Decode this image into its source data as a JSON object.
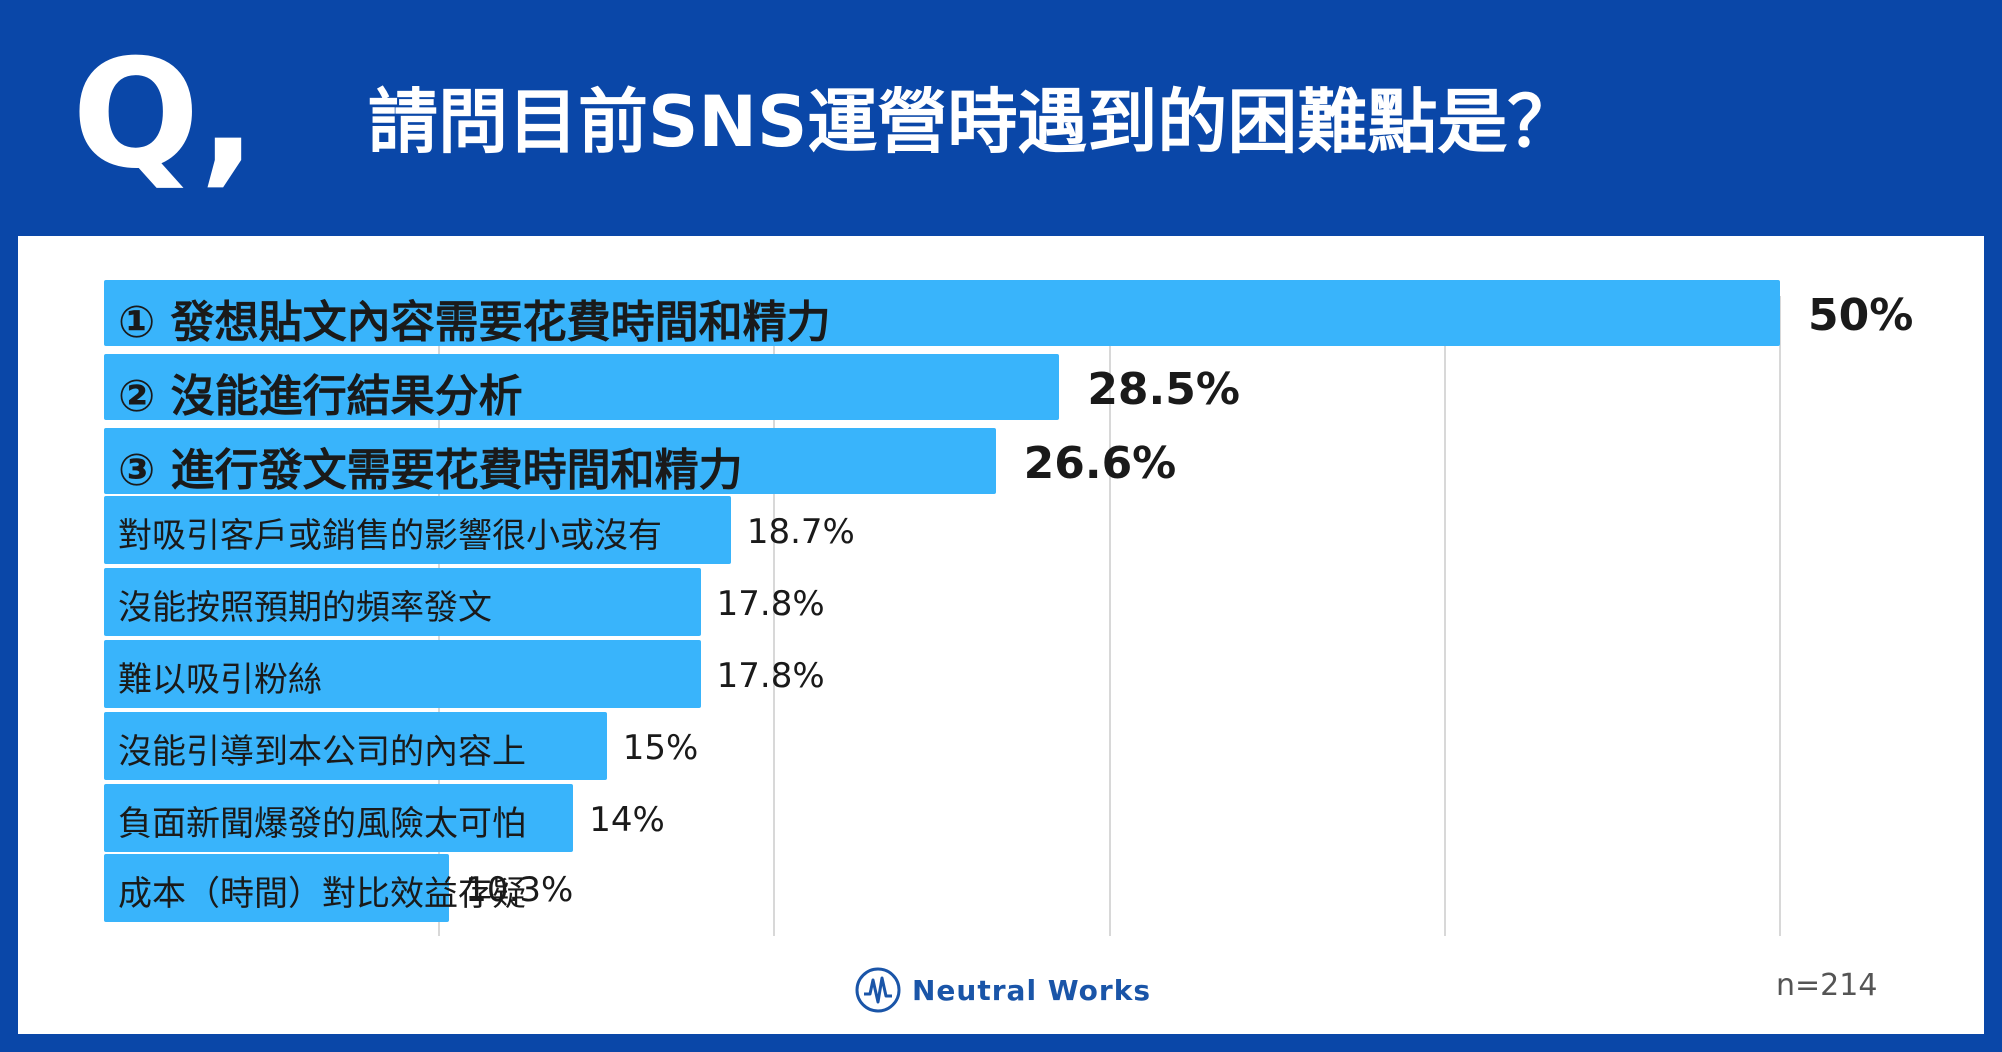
{
  "header": {
    "q_mark": "Q,",
    "question": "請問目前SNS運營時遇到的困難點是？"
  },
  "colors": {
    "background": "#0a47a8",
    "bar": "#39b4fb",
    "panel": "#ffffff"
  },
  "chart_data": {
    "type": "bar",
    "orientation": "horizontal",
    "categories": [
      "① 發想貼文內容需要花費時間和精力",
      "② 沒能進行結果分析",
      "③ 進行發文需要花費時間和精力",
      "對吸引客戶或銷售的影響很小或沒有",
      "沒能按照預期的頻率發文",
      "難以吸引粉絲",
      "沒能引導到本公司的內容上",
      "負面新聞爆發的風險太可怕",
      "成本（時間）對比效益存疑"
    ],
    "values": [
      50,
      28.5,
      26.6,
      18.7,
      17.8,
      17.8,
      15,
      14,
      10.3
    ],
    "value_labels": [
      "50%",
      "28.5%",
      "26.6%",
      "18.7%",
      "17.8%",
      "17.8%",
      "15%",
      "14%",
      "10.3%"
    ],
    "highlighted": [
      true,
      true,
      true,
      false,
      false,
      false,
      false,
      false,
      false
    ],
    "xlim": [
      0,
      50
    ],
    "gridlines": [
      10,
      20,
      30,
      40,
      50
    ],
    "grid": true
  },
  "footer": {
    "brand": "Neutral Works",
    "sample_size": "n=214"
  }
}
